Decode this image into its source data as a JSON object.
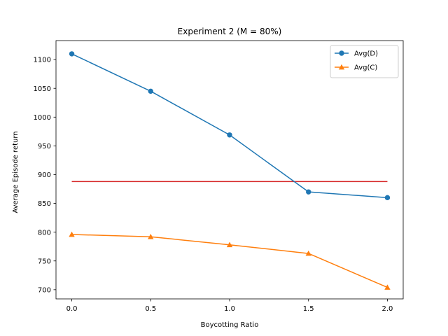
{
  "chart_data": {
    "type": "line",
    "title": "Experiment 2 (M = 80%)",
    "xlabel": "Boycotting Ratio",
    "ylabel": "Average Episode return",
    "xlim": [
      -0.1,
      2.1
    ],
    "ylim": [
      684,
      1133
    ],
    "xticks": [
      0.0,
      0.5,
      1.0,
      1.5,
      2.0
    ],
    "xtick_labels": [
      "0.0",
      "0.5",
      "1.0",
      "1.5",
      "2.0"
    ],
    "yticks": [
      700,
      750,
      800,
      850,
      900,
      950,
      1000,
      1050,
      1100
    ],
    "ytick_labels": [
      "700",
      "750",
      "800",
      "850",
      "900",
      "950",
      "1000",
      "1050",
      "1100"
    ],
    "x": [
      0.0,
      0.5,
      1.0,
      1.5,
      2.0
    ],
    "series": [
      {
        "name": "Avg(D)",
        "values": [
          1110,
          1045,
          969,
          870,
          860
        ],
        "color": "#1f77b4",
        "marker": "circle"
      },
      {
        "name": "Avg(C)",
        "values": [
          796,
          792,
          778,
          763,
          704
        ],
        "color": "#ff7f0e",
        "marker": "triangle"
      }
    ],
    "reference_line": {
      "y": 888,
      "x_range": [
        0.0,
        2.0
      ],
      "color": "#d62728"
    },
    "legend_position": "top-right",
    "grid": false
  }
}
